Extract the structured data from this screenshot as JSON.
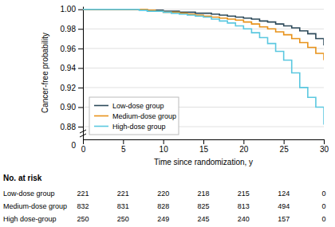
{
  "chart_data": {
    "type": "line",
    "xlabel": "Time since randomization, y",
    "ylabel": "Cancer-free probability",
    "xlim": [
      0,
      30
    ],
    "xticks": [
      0,
      5,
      10,
      15,
      20,
      25,
      30
    ],
    "ylim": [
      0.867,
      1.003
    ],
    "yticks": [
      0.88,
      {
        "value": 0.9,
        "label": "0.90"
      },
      0.92,
      0.94,
      0.96,
      0.98,
      {
        "value": 1,
        "label": "1.00"
      }
    ],
    "grid": true,
    "legend": "lower left",
    "annotations": [
      {
        "text": "0"
      }
    ],
    "series": [
      {
        "name": "Low-dose group",
        "color": "#2d4a5a",
        "line_style": "step",
        "x": [
          0,
          7,
          8,
          9,
          10,
          11,
          12,
          13,
          14,
          15,
          16,
          17,
          18,
          19,
          20,
          21,
          22,
          23,
          24,
          25,
          26,
          27,
          28,
          29,
          30
        ],
        "values": [
          1.0,
          1.0,
          0.999,
          0.999,
          0.998,
          0.998,
          0.997,
          0.997,
          0.996,
          0.996,
          0.995,
          0.994,
          0.993,
          0.992,
          0.991,
          0.99,
          0.988,
          0.987,
          0.985,
          0.983,
          0.981,
          0.978,
          0.975,
          0.97,
          0.963
        ]
      },
      {
        "name": "Medium-dose group",
        "color": "#e8921a",
        "line_style": "step",
        "x": [
          0,
          7,
          8,
          9,
          10,
          11,
          12,
          13,
          14,
          15,
          16,
          17,
          18,
          19,
          20,
          21,
          22,
          23,
          24,
          25,
          26,
          27,
          28,
          29,
          30
        ],
        "values": [
          1.0,
          1.0,
          0.999,
          0.998,
          0.997,
          0.997,
          0.996,
          0.995,
          0.994,
          0.993,
          0.992,
          0.991,
          0.99,
          0.989,
          0.987,
          0.985,
          0.982,
          0.98,
          0.977,
          0.974,
          0.97,
          0.966,
          0.961,
          0.955,
          0.948
        ]
      },
      {
        "name": "High-dose group",
        "color": "#5bc8e0",
        "line_style": "step",
        "x": [
          0,
          6,
          7,
          8,
          9,
          10,
          11,
          12,
          13,
          14,
          15,
          16,
          17,
          18,
          19,
          20,
          21,
          22,
          23,
          24,
          25,
          26,
          27,
          28,
          29,
          30
        ],
        "values": [
          1.0,
          1.0,
          0.999,
          0.998,
          0.998,
          0.997,
          0.996,
          0.995,
          0.994,
          0.993,
          0.992,
          0.99,
          0.988,
          0.986,
          0.983,
          0.98,
          0.976,
          0.971,
          0.965,
          0.957,
          0.948,
          0.935,
          0.92,
          0.91,
          0.9,
          0.882
        ]
      }
    ],
    "at_risk": {
      "title": "No. at risk",
      "x": [
        0,
        5,
        10,
        15,
        20,
        25,
        30
      ],
      "rows": [
        {
          "name": "Low-dose group",
          "values": [
            221,
            221,
            220,
            218,
            215,
            124,
            0
          ]
        },
        {
          "name": "Medium-dose group",
          "values": [
            832,
            831,
            828,
            825,
            813,
            494,
            0
          ]
        },
        {
          "name": "High dose-group",
          "values": [
            250,
            250,
            249,
            245,
            240,
            157,
            0
          ]
        }
      ]
    }
  }
}
